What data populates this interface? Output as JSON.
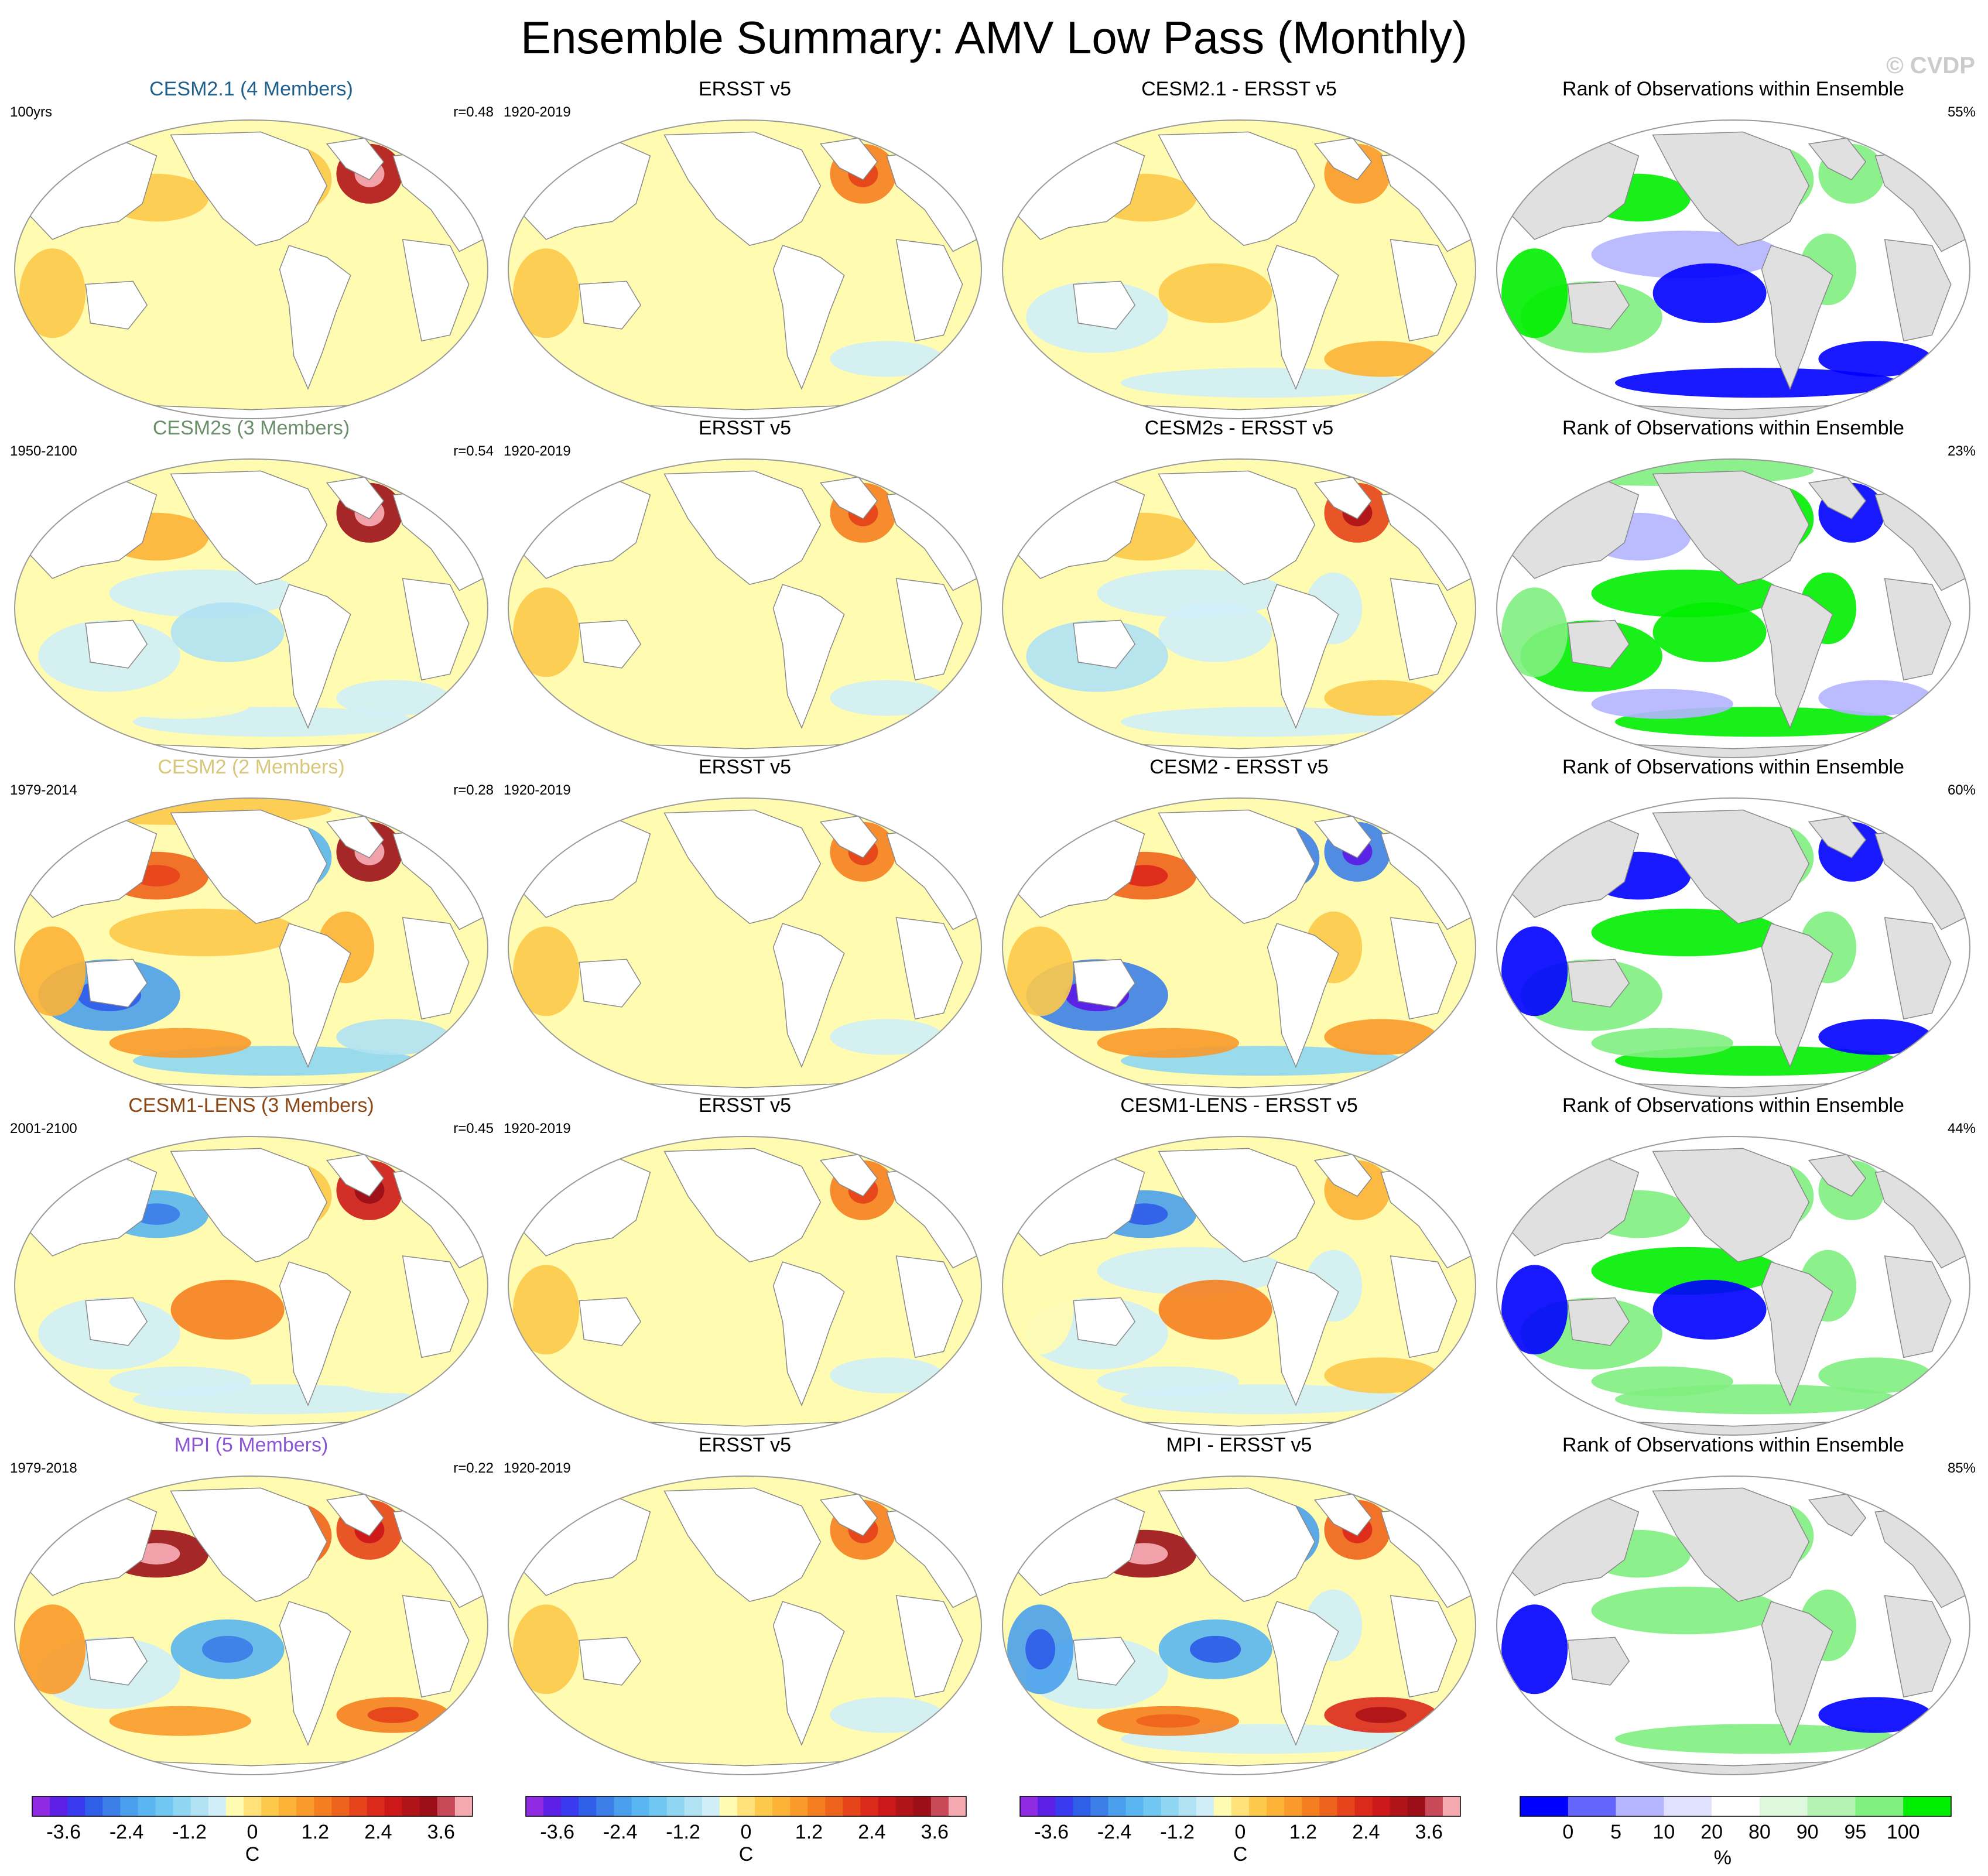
{
  "figure": {
    "title": "Ensemble Summary: AMV Low Pass (Monthly)",
    "watermark": "© CVDP"
  },
  "chart_data": [
    {
      "type": "heatmap",
      "row": 1,
      "col": 1,
      "title": "CESM2.1 (4 Members)",
      "title_color": "#1f5f8b",
      "period": "100yrs",
      "correlation": "r=0.48",
      "pattern": [
        0.0,
        0.5,
        0.4,
        0.2,
        -0.3,
        -0.2,
        0.1,
        2.8,
        -0.2,
        0.3,
        -0.1,
        0.0
      ]
    },
    {
      "type": "heatmap",
      "row": 1,
      "col": 2,
      "title": "ERSST v5",
      "title_color": "#000000",
      "period": "1920-2019",
      "pattern": [
        0.0,
        0.2,
        0.2,
        0.0,
        0.1,
        -0.3,
        0.2,
        1.4,
        0.0,
        0.3,
        -0.2,
        -0.4
      ]
    },
    {
      "type": "heatmap",
      "row": 1,
      "col": 3,
      "title": "CESM2.1 - ERSST v5",
      "title_color": "#000000",
      "pattern": [
        0.0,
        0.3,
        0.2,
        0.2,
        -0.4,
        0.3,
        -0.1,
        1.0,
        -0.4,
        0.0,
        0.1,
        0.6
      ]
    },
    {
      "type": "heatmap",
      "row": 1,
      "col": 4,
      "title": "Rank of Observations within Ensemble",
      "title_color": "#000000",
      "rank_percent": "55%",
      "pattern": [
        0.0,
        0.5,
        0.3,
        -0.2,
        0.2,
        -0.6,
        0.3,
        0.3,
        -0.7,
        0.5,
        0.0,
        -0.8
      ]
    },
    {
      "type": "heatmap",
      "row": 2,
      "col": 1,
      "title": "CESM2s (3 Members)",
      "title_color": "#6b8f6b",
      "period": "1950-2100",
      "correlation": "r=0.54",
      "pattern": [
        -0.2,
        0.6,
        0.1,
        -0.4,
        -0.5,
        -0.7,
        -0.2,
        3.0,
        -0.4,
        0.1,
        -0.3,
        -0.5
      ]
    },
    {
      "type": "heatmap",
      "row": 2,
      "col": 2,
      "title": "ERSST v5",
      "title_color": "#000000",
      "period": "1920-2019",
      "pattern": [
        0.0,
        0.2,
        0.2,
        0.0,
        0.1,
        -0.3,
        0.2,
        1.4,
        0.0,
        0.3,
        -0.2,
        -0.4
      ]
    },
    {
      "type": "heatmap",
      "row": 2,
      "col": 3,
      "title": "CESM2s - ERSST v5",
      "title_color": "#000000",
      "pattern": [
        -0.3,
        0.5,
        -0.3,
        -0.6,
        -0.7,
        -0.5,
        -0.5,
        2.0,
        -0.5,
        -0.2,
        -0.2,
        0.4
      ]
    },
    {
      "type": "heatmap",
      "row": 2,
      "col": 4,
      "title": "Rank of Observations within Ensemble",
      "title_color": "#000000",
      "rank_percent": "23%",
      "pattern": [
        0.2,
        -0.2,
        0.5,
        0.6,
        0.6,
        0.5,
        0.6,
        -0.5,
        0.6,
        0.4,
        -0.3,
        -0.4
      ]
    },
    {
      "type": "heatmap",
      "row": 3,
      "col": 1,
      "title": "CESM2 (2 Members)",
      "title_color": "#d8c77a",
      "period": "1979-2014",
      "correlation": "r=0.28",
      "pattern": [
        0.3,
        1.5,
        -1.8,
        0.3,
        -2.0,
        -0.2,
        0.8,
        3.0,
        -1.2,
        0.6,
        0.9,
        -0.8
      ]
    },
    {
      "type": "heatmap",
      "row": 3,
      "col": 2,
      "title": "ERSST v5",
      "title_color": "#000000",
      "period": "1920-2019",
      "pattern": [
        0.0,
        0.2,
        0.2,
        0.0,
        0.1,
        -0.3,
        0.2,
        1.4,
        0.0,
        0.3,
        -0.2,
        -0.4
      ]
    },
    {
      "type": "heatmap",
      "row": 3,
      "col": 3,
      "title": "CESM2 - ERSST v5",
      "title_color": "#000000",
      "pattern": [
        0.2,
        1.6,
        -2.2,
        0.2,
        -2.3,
        0.2,
        0.5,
        -2.4,
        -1.0,
        0.3,
        1.1,
        0.9
      ]
    },
    {
      "type": "heatmap",
      "row": 3,
      "col": 4,
      "title": "Rank of Observations within Ensemble",
      "title_color": "#000000",
      "rank_percent": "60%",
      "pattern": [
        0.0,
        -0.6,
        0.3,
        0.5,
        0.4,
        0.0,
        0.3,
        -0.6,
        0.5,
        -0.7,
        0.3,
        -0.7
      ]
    },
    {
      "type": "heatmap",
      "row": 4,
      "col": 1,
      "title": "CESM1-LENS (3 Members)",
      "title_color": "#8b4513",
      "period": "2001-2100",
      "correlation": "r=0.45",
      "pattern": [
        0.0,
        -1.6,
        0.4,
        -0.3,
        -0.5,
        1.2,
        -0.2,
        2.4,
        -0.4,
        0.2,
        -0.5,
        -0.3
      ]
    },
    {
      "type": "heatmap",
      "row": 4,
      "col": 2,
      "title": "ERSST v5",
      "title_color": "#000000",
      "period": "1920-2019",
      "pattern": [
        0.0,
        0.2,
        0.2,
        0.0,
        0.1,
        -0.3,
        0.2,
        1.4,
        0.0,
        0.3,
        -0.2,
        -0.4
      ]
    },
    {
      "type": "heatmap",
      "row": 4,
      "col": 3,
      "title": "CESM1-LENS - ERSST v5",
      "title_color": "#000000",
      "pattern": [
        -0.2,
        -2.0,
        -0.1,
        -0.4,
        -0.6,
        1.2,
        -0.5,
        0.8,
        -0.6,
        -0.3,
        -0.4,
        0.5
      ]
    },
    {
      "type": "heatmap",
      "row": 4,
      "col": 4,
      "title": "Rank of Observations within Ensemble",
      "title_color": "#000000",
      "rank_percent": "44%",
      "pattern": [
        0.0,
        0.4,
        0.3,
        0.5,
        0.4,
        -0.8,
        0.3,
        0.3,
        0.3,
        -0.5,
        0.4,
        0.3
      ]
    },
    {
      "type": "heatmap",
      "row": 5,
      "col": 1,
      "title": "MPI (5 Members)",
      "title_color": "#8a56d6",
      "period": "1979-2018",
      "correlation": "r=0.22",
      "pattern": [
        0.2,
        3.2,
        1.5,
        -0.2,
        -0.4,
        -1.6,
        -0.3,
        1.8,
        -0.3,
        0.9,
        1.1,
        1.4
      ]
    },
    {
      "type": "heatmap",
      "row": 5,
      "col": 2,
      "title": "ERSST v5",
      "title_color": "#000000",
      "period": "1920-2019",
      "pattern": [
        0.0,
        0.2,
        0.2,
        0.0,
        0.1,
        -0.3,
        0.2,
        1.4,
        0.0,
        0.3,
        -0.2,
        -0.4
      ]
    },
    {
      "type": "heatmap",
      "row": 5,
      "col": 3,
      "title": "MPI - ERSST v5",
      "title_color": "#000000",
      "pattern": [
        0.2,
        3.0,
        -2.0,
        -0.2,
        -0.6,
        -1.8,
        -0.4,
        1.6,
        -0.5,
        -1.9,
        1.3,
        2.2
      ]
    },
    {
      "type": "heatmap",
      "row": 5,
      "col": 4,
      "title": "Rank of Observations within Ensemble",
      "title_color": "#000000",
      "rank_percent": "85%",
      "pattern": [
        0.0,
        0.2,
        0.2,
        0.3,
        0.1,
        0.1,
        0.2,
        0.0,
        0.2,
        -0.5,
        0.1,
        -0.5
      ]
    }
  ],
  "colorbars": {
    "temperature": {
      "tick_labels": [
        "-3.6",
        "-2.4",
        "-1.2",
        "0",
        "1.2",
        "2.4",
        "3.6"
      ],
      "tick_values": [
        -3.6,
        -2.4,
        -1.2,
        0,
        1.2,
        2.4,
        3.6
      ],
      "levels": [
        -4.2,
        -3.9,
        -3.6,
        -3.3,
        -3.0,
        -2.7,
        -2.4,
        -2.1,
        -1.8,
        -1.5,
        -1.2,
        -0.9,
        -0.6,
        -0.3,
        0,
        0.3,
        0.6,
        0.9,
        1.2,
        1.5,
        1.8,
        2.1,
        2.4,
        2.7,
        3.0,
        3.3,
        3.6,
        3.9,
        4.2
      ],
      "colors": [
        "#8f2be2",
        "#5b1fe6",
        "#3a3af0",
        "#2f5fe8",
        "#3d7fe8",
        "#4aa0ec",
        "#5ab6f0",
        "#70c8f2",
        "#8ed6f2",
        "#b0e2f4",
        "#cfeef8",
        "#fffbb0",
        "#ffe17a",
        "#fdc94a",
        "#fcb236",
        "#f99a2a",
        "#f57f20",
        "#ef641c",
        "#e6441a",
        "#dc2a1a",
        "#cc1818",
        "#b01418",
        "#9c0f18",
        "#c84a58",
        "#f4a8b0"
      ],
      "unit": "C"
    },
    "rank": {
      "tick_labels": [
        "0",
        "5",
        "10",
        "20",
        "80",
        "90",
        "95",
        "100"
      ],
      "tick_values": [
        0,
        5,
        10,
        20,
        80,
        90,
        95,
        100
      ],
      "colors": [
        "#0000ff",
        "#6464ff",
        "#b4b4ff",
        "#e0e0ff",
        "#ffffff",
        "#ddf8dd",
        "#b4f2b4",
        "#80f080",
        "#00ee00"
      ],
      "unit": "%"
    }
  }
}
